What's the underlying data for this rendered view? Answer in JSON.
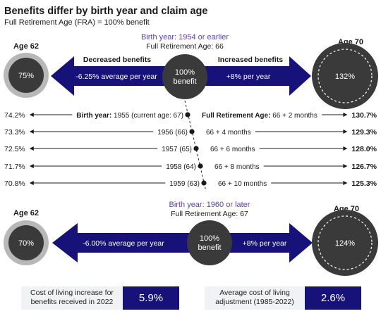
{
  "title": "Benefits differ by birth year and claim age",
  "subtitle": "Full Retirement Age (FRA) = 100% benefit",
  "top": {
    "birth_year": "Birth year: 1954 or earlier",
    "fra": "Full Retirement Age: 66",
    "age_left": "Age 62",
    "age_right": "Age 70",
    "left_pct": "75%",
    "right_pct": "132%",
    "decreased": "Decreased benefits",
    "increased": "Increased benefits",
    "left_arrow_text": "-6.25% average per year",
    "right_arrow_text": "+8% per year",
    "center_line1": "100%",
    "center_line2": "benefit"
  },
  "rows": [
    {
      "left": "74.2%",
      "label_bold": "Birth year:",
      "label": " 1955 (current age: 67)",
      "fra_bold": "Full Retirement Age:",
      "fra": " 66 + 2 months",
      "right": "130.7%"
    },
    {
      "left": "73.3%",
      "label_bold": "",
      "label": "1956 (66)",
      "fra_bold": "",
      "fra": "66 + 4 months",
      "right": "129.3%"
    },
    {
      "left": "72.5%",
      "label_bold": "",
      "label": "1957 (65)",
      "fra_bold": "",
      "fra": "66 + 6 months",
      "right": "128.0%"
    },
    {
      "left": "71.7%",
      "label_bold": "",
      "label": "1958 (64)",
      "fra_bold": "",
      "fra": "66 + 8 months",
      "right": "126.7%"
    },
    {
      "left": "70.8%",
      "label_bold": "",
      "label": "1959 (63)",
      "fra_bold": "",
      "fra": "66 + 10 months",
      "right": "125.3%"
    }
  ],
  "bottom": {
    "birth_year": "Birth year: 1960 or later",
    "fra": "Full Retirement Age: 67",
    "age_left": "Age 62",
    "age_right": "Age 70",
    "left_pct": "70%",
    "right_pct": "124%",
    "left_arrow_text": "-6.00% average per year",
    "right_arrow_text": "+8% per year",
    "center_line1": "100%",
    "center_line2": "benefit"
  },
  "footer": {
    "col_label": "Cost of living increase for benefits received in 2022",
    "col_value": "5.9%",
    "avg_label": "Average cost of living adjustment (1985-2022)",
    "avg_value": "2.6%"
  },
  "colors": {
    "navy": "#16127a",
    "purple": "#5a3fc0",
    "dark": "#3a3a3a",
    "gray_ring": "#b8b8b8"
  }
}
